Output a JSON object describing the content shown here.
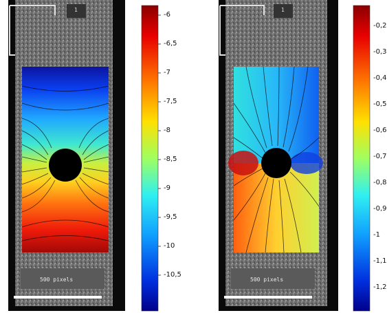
{
  "colors": {
    "background": "#ffffff",
    "specimen_gray": "#6a6a6a",
    "frame_black": "#0a0a0a",
    "hole": "#000000",
    "colormap": "jet"
  },
  "panels": [
    {
      "id": "left",
      "field": "vertical",
      "colorbar_labels": [
        "-6",
        "-6,5",
        "-7",
        "-7,5",
        "-8",
        "-8,5",
        "-9",
        "-9,5",
        "-10",
        "-10,5"
      ],
      "corner_label": "1",
      "scale_text": "500 pixels"
    },
    {
      "id": "right",
      "field": "horizontal",
      "colorbar_labels": [
        "-0,2",
        "-0,3",
        "-0,4",
        "-0,5",
        "-0,6",
        "-0,7",
        "-0,8",
        "-0,9",
        "-1",
        "-1,1",
        "-1,2"
      ],
      "corner_label": "1",
      "scale_text": "500 pixels"
    }
  ]
}
